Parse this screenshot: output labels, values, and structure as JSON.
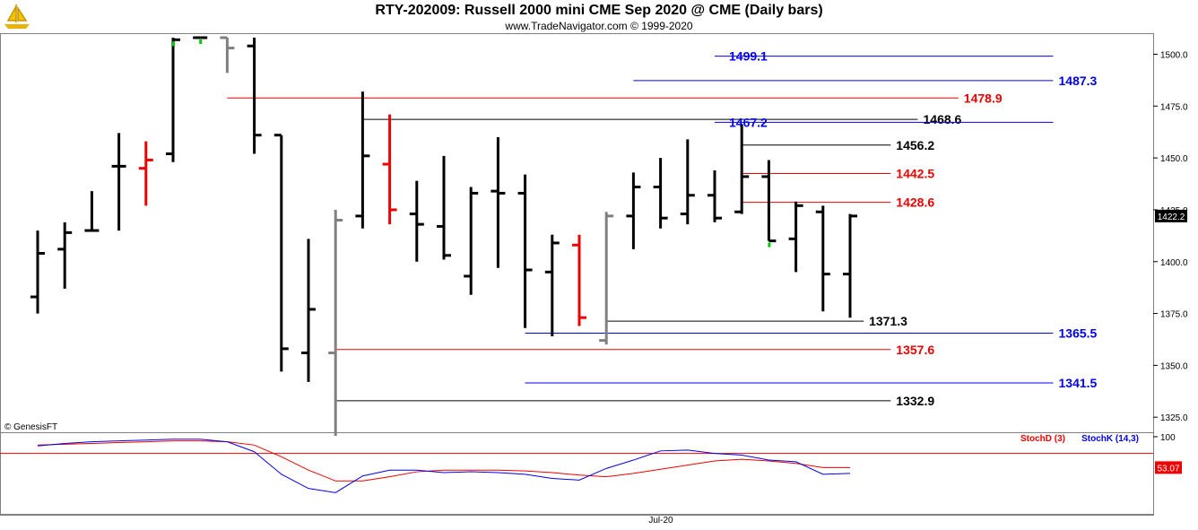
{
  "header": {
    "title": "RTY-202009:  Russell 2000 mini CME Sep 2020 @ CME  (Daily bars)",
    "subtitle": "www.TradeNavigator.com © 1999-2020",
    "logo_icon": "sailing-ship-logo-icon"
  },
  "footer": {
    "copyright": "© GenesisFT",
    "x_axis_label": "Jul-20"
  },
  "chart_data": [
    {
      "type": "ohlc",
      "title": "RTY-202009:  Russell 2000 mini CME Sep 2020 @ CME  (Daily bars)",
      "ylim": [
        1316,
        1508
      ],
      "yticks": [
        "1500.0",
        "1475.0",
        "1450.0",
        "1425.0",
        "1400.0",
        "1375.0",
        "1350.0",
        "1325.0"
      ],
      "last_price_label": "1422.2",
      "colors": {
        "up_down": "#000000",
        "reversal": "#ee0000",
        "inside": "#808080",
        "close_marker": "#00cc00",
        "price_box": "#000000"
      },
      "bars": [
        {
          "i": 0,
          "high": 1415,
          "low": 1375,
          "open": 1383,
          "close": 1404,
          "color": "black"
        },
        {
          "i": 1,
          "high": 1419,
          "low": 1387,
          "open": 1406,
          "close": 1414,
          "color": "black"
        },
        {
          "i": 2,
          "high": 1434,
          "low": 1415,
          "open": 1415,
          "close": 1415,
          "color": "black"
        },
        {
          "i": 3,
          "high": 1462,
          "low": 1415,
          "open": 1446,
          "close": 1446,
          "color": "black"
        },
        {
          "i": 4,
          "high": 1458,
          "low": 1427,
          "open": 1445,
          "close": 1449,
          "color": "red"
        },
        {
          "i": 5,
          "high": 1508,
          "low": 1448,
          "open": 1452,
          "close": 1507,
          "color": "black"
        },
        {
          "i": 6,
          "high": 1508,
          "low": 1508,
          "open": 1508,
          "close": 1508,
          "color": "black"
        },
        {
          "i": 7,
          "high": 1508,
          "low": 1491,
          "open": 1508,
          "close": 1503,
          "color": "gray"
        },
        {
          "i": 8,
          "high": 1508,
          "low": 1452,
          "open": 1504,
          "close": 1461,
          "color": "black"
        },
        {
          "i": 9,
          "high": 1461,
          "low": 1347,
          "open": 1461,
          "close": 1358,
          "color": "black"
        },
        {
          "i": 10,
          "high": 1411,
          "low": 1342,
          "open": 1356,
          "close": 1377,
          "color": "black"
        },
        {
          "i": 11,
          "high": 1425,
          "low": 1316,
          "open": 1356,
          "close": 1420,
          "color": "gray"
        },
        {
          "i": 12,
          "high": 1482,
          "low": 1416,
          "open": 1422,
          "close": 1451,
          "color": "black"
        },
        {
          "i": 13,
          "high": 1471,
          "low": 1418,
          "open": 1447,
          "close": 1425,
          "color": "red"
        },
        {
          "i": 14,
          "high": 1439,
          "low": 1400,
          "open": 1423,
          "close": 1418,
          "color": "black"
        },
        {
          "i": 15,
          "high": 1451,
          "low": 1401,
          "open": 1417,
          "close": 1403,
          "color": "black"
        },
        {
          "i": 16,
          "high": 1436,
          "low": 1384,
          "open": 1393,
          "close": 1433,
          "color": "black"
        },
        {
          "i": 17,
          "high": 1460,
          "low": 1397,
          "open": 1434,
          "close": 1433,
          "color": "black"
        },
        {
          "i": 18,
          "high": 1442,
          "low": 1368,
          "open": 1433,
          "close": 1396,
          "color": "black"
        },
        {
          "i": 19,
          "high": 1413,
          "low": 1364,
          "open": 1395,
          "close": 1409,
          "color": "black"
        },
        {
          "i": 20,
          "high": 1413,
          "low": 1369,
          "open": 1408,
          "close": 1373,
          "color": "red"
        },
        {
          "i": 21,
          "high": 1424,
          "low": 1360,
          "open": 1362,
          "close": 1422,
          "color": "gray"
        },
        {
          "i": 22,
          "high": 1443,
          "low": 1406,
          "open": 1422,
          "close": 1436,
          "color": "black"
        },
        {
          "i": 23,
          "high": 1450,
          "low": 1416,
          "open": 1436,
          "close": 1421,
          "color": "black"
        },
        {
          "i": 24,
          "high": 1459,
          "low": 1418,
          "open": 1423,
          "close": 1432,
          "color": "black"
        },
        {
          "i": 25,
          "high": 1444,
          "low": 1419,
          "open": 1432,
          "close": 1421,
          "color": "black"
        },
        {
          "i": 26,
          "high": 1466,
          "low": 1423,
          "open": 1424,
          "close": 1441,
          "color": "black"
        },
        {
          "i": 27,
          "high": 1449,
          "low": 1410,
          "open": 1441,
          "close": 1410,
          "color": "black"
        },
        {
          "i": 28,
          "high": 1429,
          "low": 1395,
          "open": 1411,
          "close": 1427,
          "color": "black"
        },
        {
          "i": 29,
          "high": 1427,
          "low": 1376,
          "open": 1424,
          "close": 1394,
          "color": "black"
        },
        {
          "i": 30,
          "high": 1423,
          "low": 1373,
          "open": 1394,
          "close": 1422,
          "color": "black"
        }
      ],
      "levels": [
        {
          "label": "1499.1",
          "value": 1499.1,
          "color": "#0000ee",
          "label_side": "left",
          "x_from_bar": 25,
          "x_to_bar": 37.5,
          "bold": true
        },
        {
          "label": "1487.3",
          "value": 1487.3,
          "color": "#0000ee",
          "label_side": "right",
          "x_from_bar": 22,
          "x_to_bar": 37.5,
          "bold": true
        },
        {
          "label": "1478.9",
          "value": 1478.9,
          "color": "#ee0000",
          "label_side": "right",
          "x_from_bar": 7,
          "x_to_bar": 34,
          "bold": true
        },
        {
          "label": "1468.6",
          "value": 1468.6,
          "color": "#000000",
          "label_side": "right",
          "x_from_bar": 12,
          "x_to_bar": 32.5,
          "bold": true
        },
        {
          "label": "1467.2",
          "value": 1467.2,
          "color": "#0000ee",
          "label_side": "left",
          "x_from_bar": 25,
          "x_to_bar": 37.5,
          "bold": true
        },
        {
          "label": "1456.2",
          "value": 1456.2,
          "color": "#000000",
          "label_side": "right",
          "x_from_bar": 26,
          "x_to_bar": 31.5,
          "bold": true
        },
        {
          "label": "1442.5",
          "value": 1442.5,
          "color": "#ee0000",
          "label_side": "right",
          "x_from_bar": 26,
          "x_to_bar": 31.5,
          "bold": true
        },
        {
          "label": "1428.6",
          "value": 1428.6,
          "color": "#ee0000",
          "label_side": "right",
          "x_from_bar": 26,
          "x_to_bar": 31.5,
          "bold": true
        },
        {
          "label": "1371.3",
          "value": 1371.3,
          "color": "#000000",
          "label_side": "right",
          "x_from_bar": 21,
          "x_to_bar": 30.5,
          "bold": true
        },
        {
          "label": "1365.5",
          "value": 1365.5,
          "color": "#0000ee",
          "label_side": "right",
          "x_from_bar": 18,
          "x_to_bar": 37.5,
          "bold": true
        },
        {
          "label": "1357.6",
          "value": 1357.6,
          "color": "#ee0000",
          "label_side": "right",
          "x_from_bar": 11,
          "x_to_bar": 31.5,
          "bold": true
        },
        {
          "label": "1341.5",
          "value": 1341.5,
          "color": "#0000ee",
          "label_side": "right",
          "x_from_bar": 18,
          "x_to_bar": 37.5,
          "bold": true
        },
        {
          "label": "1332.9",
          "value": 1332.9,
          "color": "#000000",
          "label_side": "right",
          "x_from_bar": 11,
          "x_to_bar": 31.5,
          "bold": true
        }
      ]
    },
    {
      "type": "line",
      "ylim": [
        0,
        100
      ],
      "yticks": [
        "100"
      ],
      "reference_line": 80,
      "last_value_label": "53.07",
      "legend": [
        "StochD (3)",
        "StochK (14,3)"
      ],
      "legend_placement": "top-right",
      "series": [
        {
          "name": "StochD (3)",
          "color": "#ee0000",
          "values": [
            90,
            91,
            92,
            93,
            94,
            95,
            95,
            94,
            90,
            76,
            60,
            47,
            47,
            52,
            58,
            60,
            60,
            60,
            59,
            57,
            54,
            52,
            56,
            61,
            66,
            71,
            73,
            71,
            68,
            63,
            63
          ]
        },
        {
          "name": "StochK (14,3)",
          "color": "#0000ee",
          "values": [
            89,
            92,
            94,
            95,
            96,
            97,
            97,
            94,
            82,
            55,
            38,
            33,
            53,
            60,
            60,
            57,
            58,
            57,
            55,
            50,
            48,
            62,
            72,
            83,
            84,
            80,
            78,
            72,
            70,
            55,
            56
          ]
        }
      ]
    }
  ]
}
